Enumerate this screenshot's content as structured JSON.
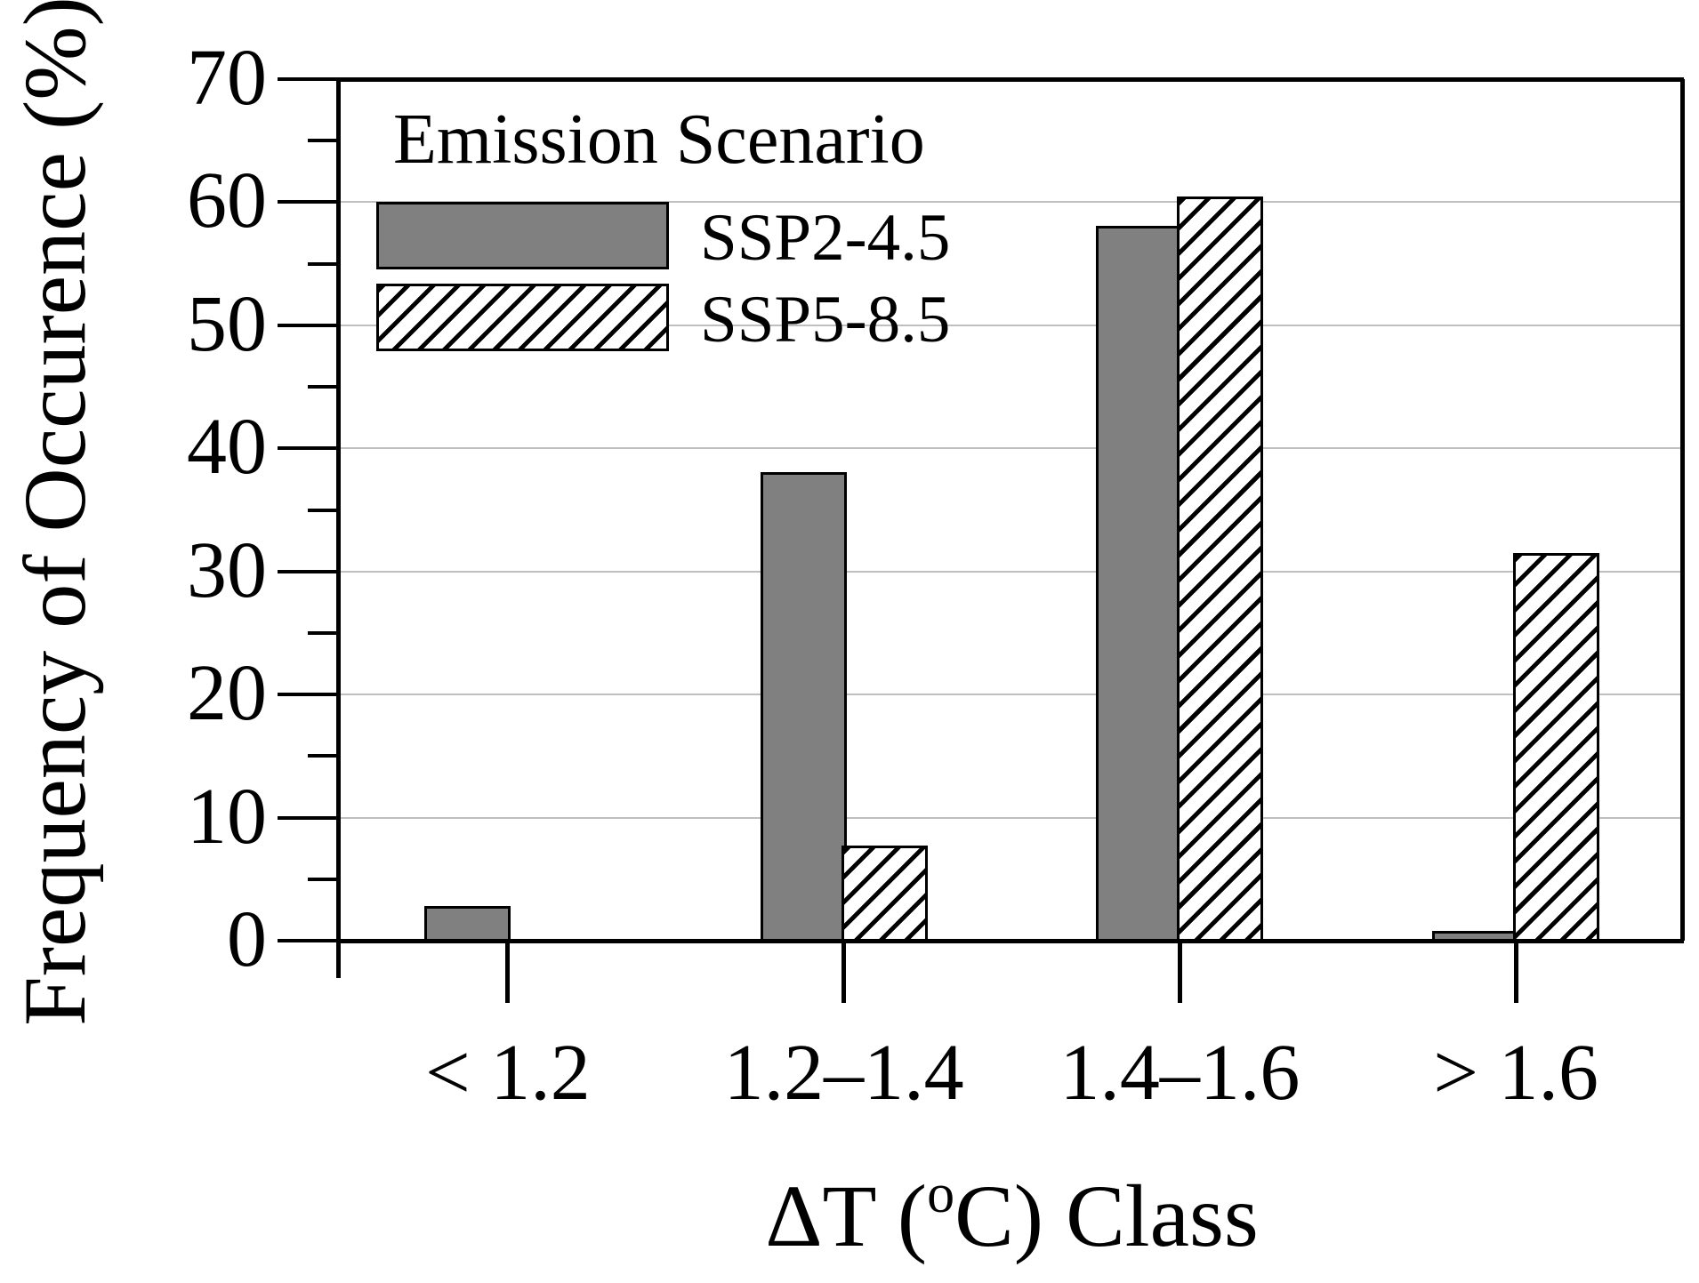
{
  "chart_data": {
    "type": "bar",
    "title": "",
    "categories": [
      "< 1.2",
      "1.2–1.4",
      "1.4–1.6",
      "> 1.6"
    ],
    "series": [
      {
        "name": "SSP2-4.5",
        "style": "solid-gray",
        "values": [
          2.8,
          38.1,
          58.1,
          0.8
        ]
      },
      {
        "name": "SSP5-8.5",
        "style": "diagonal-hatch",
        "values": [
          0,
          7.7,
          60.5,
          31.5
        ]
      }
    ],
    "xlabel": "ΔT (ᵒC) Class",
    "xlabel_parts": {
      "pre": "ΔT (",
      "sup": "o",
      "post": "C) Class"
    },
    "ylabel": "Frequency of Occurence (%)",
    "ylim": [
      0,
      70
    ],
    "ytick_interval": 10,
    "yticks": [
      0,
      10,
      20,
      30,
      40,
      50,
      60,
      70
    ],
    "grid": "horizontal-major",
    "legend": {
      "title": "Emission Scenario",
      "position": "top-left-inside"
    }
  },
  "colors": {
    "bar_gray": "#808080",
    "hatch_line": "#000000",
    "grid": "#bfbfbf",
    "axis": "#000000",
    "background": "#ffffff"
  }
}
